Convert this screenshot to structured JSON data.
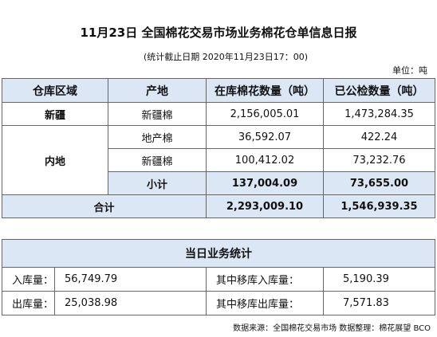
{
  "header": {
    "title": "11月23日 全国棉花交易市场业务棉花仓单信息日报",
    "subtitle": "(统计截止日期 2020年11月23日17：00)",
    "unit": "单位：吨"
  },
  "table": {
    "columns": [
      "仓库区域",
      "产地",
      "在库棉花数量（吨）",
      "已公检数量（吨）"
    ],
    "xinjiang": {
      "region": "新疆",
      "rows": [
        [
          "新疆棉",
          "2,156,005.01",
          "1,473,284.35"
        ]
      ]
    },
    "inland": {
      "region": "内地",
      "rows": [
        [
          "地产棉",
          "36,592.07",
          "422.24"
        ],
        [
          "新疆棉",
          "100,412.02",
          "73,232.76"
        ],
        [
          "小计",
          "137,004.09",
          "73,655.00"
        ]
      ]
    },
    "total": [
      "合计",
      "2,293,009.10",
      "1,546,939.35"
    ]
  },
  "daily": {
    "title": "当日业务统计",
    "rows": [
      [
        "入库量：",
        "56,749.79",
        "其中移库入库量：",
        "5,190.39"
      ],
      [
        "出库量：",
        "25,038.98",
        "其中移库出库量：",
        "7,571.83"
      ]
    ]
  },
  "footer": "数据来源：全国棉花交易市场 数据整理：棉花展望 BCO"
}
